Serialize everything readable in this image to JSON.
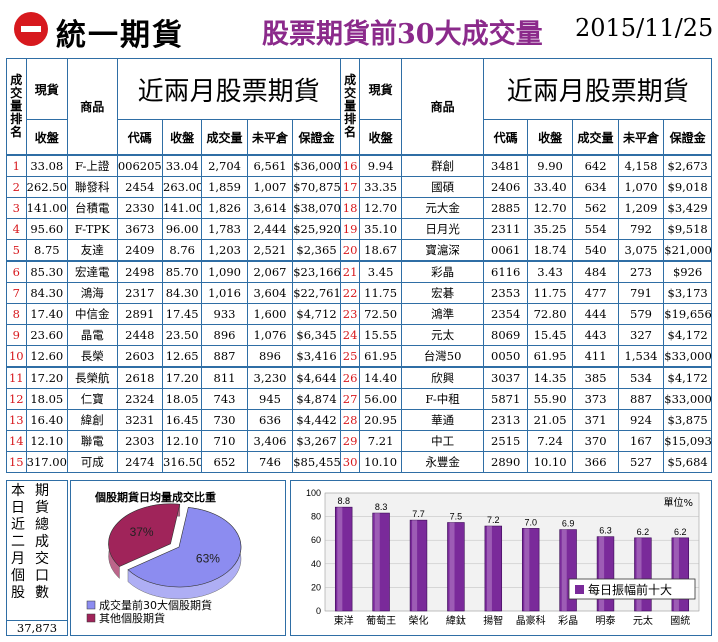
{
  "header": {
    "logo_text": "統一期貨",
    "title": "股票期貨前30大成交量",
    "date": "2015/11/25"
  },
  "table": {
    "col_rank": "成交量排名",
    "col_spot": "現貨",
    "col_spot_close": "收盤",
    "col_product": "商品",
    "group_title": "近兩月股票期貨",
    "col_code": "代碼",
    "col_close": "收盤",
    "col_volume": "成交量",
    "col_oi": "未平倉",
    "col_margin": "保證金",
    "rows": [
      {
        "rank": "1",
        "spot": "33.08",
        "product": "F-上證",
        "code": "006205",
        "close": "33.04",
        "volume": "2,704",
        "oi": "6,561",
        "margin": "$36,000",
        "rank2": "16",
        "spot2": "9.94",
        "product2": "群創",
        "code2": "3481",
        "close2": "9.90",
        "volume2": "642",
        "oi2": "4,158",
        "margin2": "$2,673"
      },
      {
        "rank": "2",
        "spot": "262.50",
        "product": "聯發科",
        "code": "2454",
        "close": "263.00",
        "volume": "1,859",
        "oi": "1,007",
        "margin": "$70,875",
        "rank2": "17",
        "spot2": "33.35",
        "product2": "國碩",
        "code2": "2406",
        "close2": "33.40",
        "volume2": "634",
        "oi2": "1,070",
        "margin2": "$9,018"
      },
      {
        "rank": "3",
        "spot": "141.00",
        "product": "台積電",
        "code": "2330",
        "close": "141.00",
        "volume": "1,826",
        "oi": "3,614",
        "margin": "$38,070",
        "rank2": "18",
        "spot2": "12.70",
        "product2": "元大金",
        "code2": "2885",
        "close2": "12.70",
        "volume2": "562",
        "oi2": "1,209",
        "margin2": "$3,429"
      },
      {
        "rank": "4",
        "spot": "95.60",
        "product": "F-TPK",
        "code": "3673",
        "close": "96.00",
        "volume": "1,783",
        "oi": "2,444",
        "margin": "$25,920",
        "rank2": "19",
        "spot2": "35.10",
        "product2": "日月光",
        "code2": "2311",
        "close2": "35.25",
        "volume2": "554",
        "oi2": "792",
        "margin2": "$9,518"
      },
      {
        "rank": "5",
        "spot": "8.75",
        "product": "友達",
        "code": "2409",
        "close": "8.76",
        "volume": "1,203",
        "oi": "2,521",
        "margin": "$2,365",
        "rank2": "20",
        "spot2": "18.67",
        "product2": "寶滬深",
        "code2": "0061",
        "close2": "18.74",
        "volume2": "540",
        "oi2": "3,075",
        "margin2": "$21,000"
      },
      {
        "rank": "6",
        "spot": "85.30",
        "product": "宏達電",
        "code": "2498",
        "close": "85.70",
        "volume": "1,090",
        "oi": "2,067",
        "margin": "$23,166",
        "rank2": "21",
        "spot2": "3.45",
        "product2": "彩晶",
        "code2": "6116",
        "close2": "3.43",
        "volume2": "484",
        "oi2": "273",
        "margin2": "$926"
      },
      {
        "rank": "7",
        "spot": "84.30",
        "product": "鴻海",
        "code": "2317",
        "close": "84.30",
        "volume": "1,016",
        "oi": "3,604",
        "margin": "$22,761",
        "rank2": "22",
        "spot2": "11.75",
        "product2": "宏碁",
        "code2": "2353",
        "close2": "11.75",
        "volume2": "477",
        "oi2": "791",
        "margin2": "$3,173"
      },
      {
        "rank": "8",
        "spot": "17.40",
        "product": "中信金",
        "code": "2891",
        "close": "17.45",
        "volume": "933",
        "oi": "1,600",
        "margin": "$4,712",
        "rank2": "23",
        "spot2": "72.50",
        "product2": "鴻準",
        "code2": "2354",
        "close2": "72.80",
        "volume2": "444",
        "oi2": "579",
        "margin2": "$19,656"
      },
      {
        "rank": "9",
        "spot": "23.60",
        "product": "晶電",
        "code": "2448",
        "close": "23.50",
        "volume": "896",
        "oi": "1,076",
        "margin": "$6,345",
        "rank2": "24",
        "spot2": "15.55",
        "product2": "元太",
        "code2": "8069",
        "close2": "15.45",
        "volume2": "443",
        "oi2": "327",
        "margin2": "$4,172"
      },
      {
        "rank": "10",
        "spot": "12.60",
        "product": "長榮",
        "code": "2603",
        "close": "12.65",
        "volume": "887",
        "oi": "896",
        "margin": "$3,416",
        "rank2": "25",
        "spot2": "61.95",
        "product2": "台灣50",
        "code2": "0050",
        "close2": "61.95",
        "volume2": "411",
        "oi2": "1,534",
        "margin2": "$33,000"
      },
      {
        "rank": "11",
        "spot": "17.20",
        "product": "長榮航",
        "code": "2618",
        "close": "17.20",
        "volume": "811",
        "oi": "3,230",
        "margin": "$4,644",
        "rank2": "26",
        "spot2": "14.40",
        "product2": "欣興",
        "code2": "3037",
        "close2": "14.35",
        "volume2": "385",
        "oi2": "534",
        "margin2": "$4,172"
      },
      {
        "rank": "12",
        "spot": "18.05",
        "product": "仁寶",
        "code": "2324",
        "close": "18.05",
        "volume": "743",
        "oi": "945",
        "margin": "$4,874",
        "rank2": "27",
        "spot2": "56.00",
        "product2": "F-中租",
        "code2": "5871",
        "close2": "55.90",
        "volume2": "373",
        "oi2": "887",
        "margin2": "$33,000"
      },
      {
        "rank": "13",
        "spot": "16.40",
        "product": "緯創",
        "code": "3231",
        "close": "16.45",
        "volume": "730",
        "oi": "636",
        "margin": "$4,442",
        "rank2": "28",
        "spot2": "20.95",
        "product2": "華通",
        "code2": "2313",
        "close2": "21.05",
        "volume2": "371",
        "oi2": "924",
        "margin2": "$3,875"
      },
      {
        "rank": "14",
        "spot": "12.10",
        "product": "聯電",
        "code": "2303",
        "close": "12.10",
        "volume": "710",
        "oi": "3,406",
        "margin": "$3,267",
        "rank2": "29",
        "spot2": "7.21",
        "product2": "中工",
        "code2": "2515",
        "close2": "7.24",
        "volume2": "370",
        "oi2": "167",
        "margin2": "$15,093"
      },
      {
        "rank": "15",
        "spot": "317.00",
        "product": "可成",
        "code": "2474",
        "close": "316.50",
        "volume": "652",
        "oi": "746",
        "margin": "$85,455",
        "rank2": "30",
        "spot2": "10.10",
        "product2": "永豐金",
        "code2": "2890",
        "close2": "10.10",
        "volume2": "366",
        "oi2": "527",
        "margin2": "$5,684"
      }
    ]
  },
  "side_box": {
    "label": "本期日貨近總二成月交個口股數",
    "value": "37,873"
  },
  "pie": {
    "title": "個股期貨日均量成交比重",
    "slices": [
      {
        "label": "成交量前30大個股期貨",
        "pct": 63,
        "pct_label": "63%",
        "color": "#8c8cf0"
      },
      {
        "label": "其他個股期貨",
        "pct": 37,
        "pct_label": "37%",
        "color": "#a0245a"
      }
    ]
  },
  "chart_data": {
    "type": "bar",
    "categories": [
      "東洋",
      "葡萄王",
      "榮化",
      "緯鈦",
      "揚智",
      "晶豪科",
      "彩晶",
      "明泰",
      "元太",
      "國統"
    ],
    "values": [
      8.8,
      8.3,
      7.7,
      7.5,
      7.2,
      7.0,
      6.9,
      6.3,
      6.2,
      6.2
    ],
    "value_labels": [
      "8.8",
      "8.3",
      "7.7",
      "7.5",
      "7.2",
      "7.0",
      "6.9",
      "6.3",
      "6.2",
      "6.2"
    ],
    "ylim": [
      0,
      10
    ],
    "yticks": [
      "0",
      "20",
      "40",
      "60",
      "80",
      "100"
    ],
    "unit": "單位%",
    "legend": "每日振幅前十大",
    "bar_color": "#7a2a9a"
  }
}
